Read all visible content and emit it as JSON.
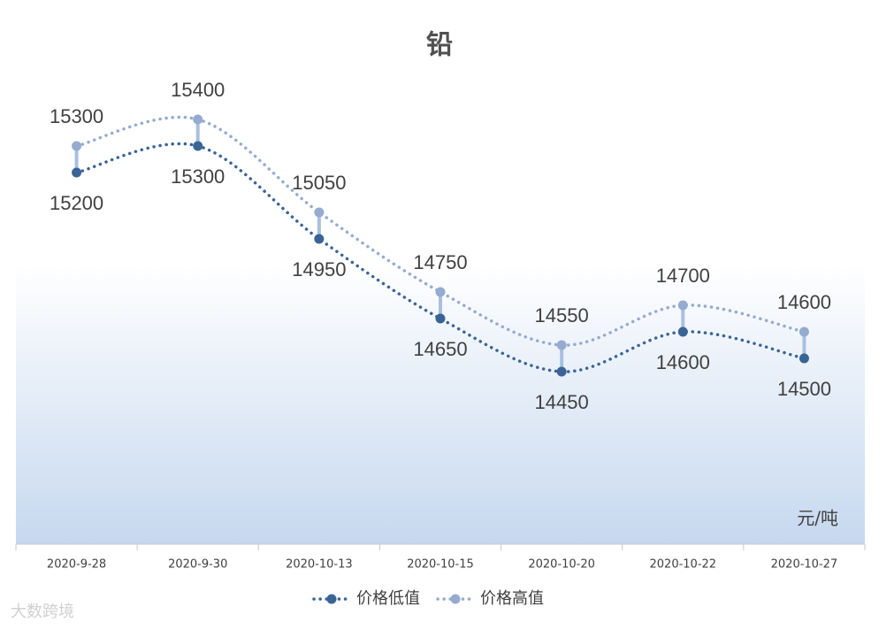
{
  "chart_data": {
    "type": "line",
    "title": "铅",
    "unit_label": "元/吨",
    "watermark": "大数跨境",
    "categories": [
      "2020-9-28",
      "2020-9-30",
      "2020-10-13",
      "2020-10-15",
      "2020-10-20",
      "2020-10-22",
      "2020-10-27"
    ],
    "series": [
      {
        "name": "价格低值",
        "color": "#3a6496",
        "values": [
          15200,
          15300,
          14950,
          14650,
          14450,
          14600,
          14500
        ]
      },
      {
        "name": "价格高值",
        "color": "#95abd0",
        "values": [
          15300,
          15400,
          15050,
          14750,
          14550,
          14700,
          14600
        ]
      }
    ],
    "ylim": [
      13800,
      15600
    ],
    "legend": "bottom"
  }
}
